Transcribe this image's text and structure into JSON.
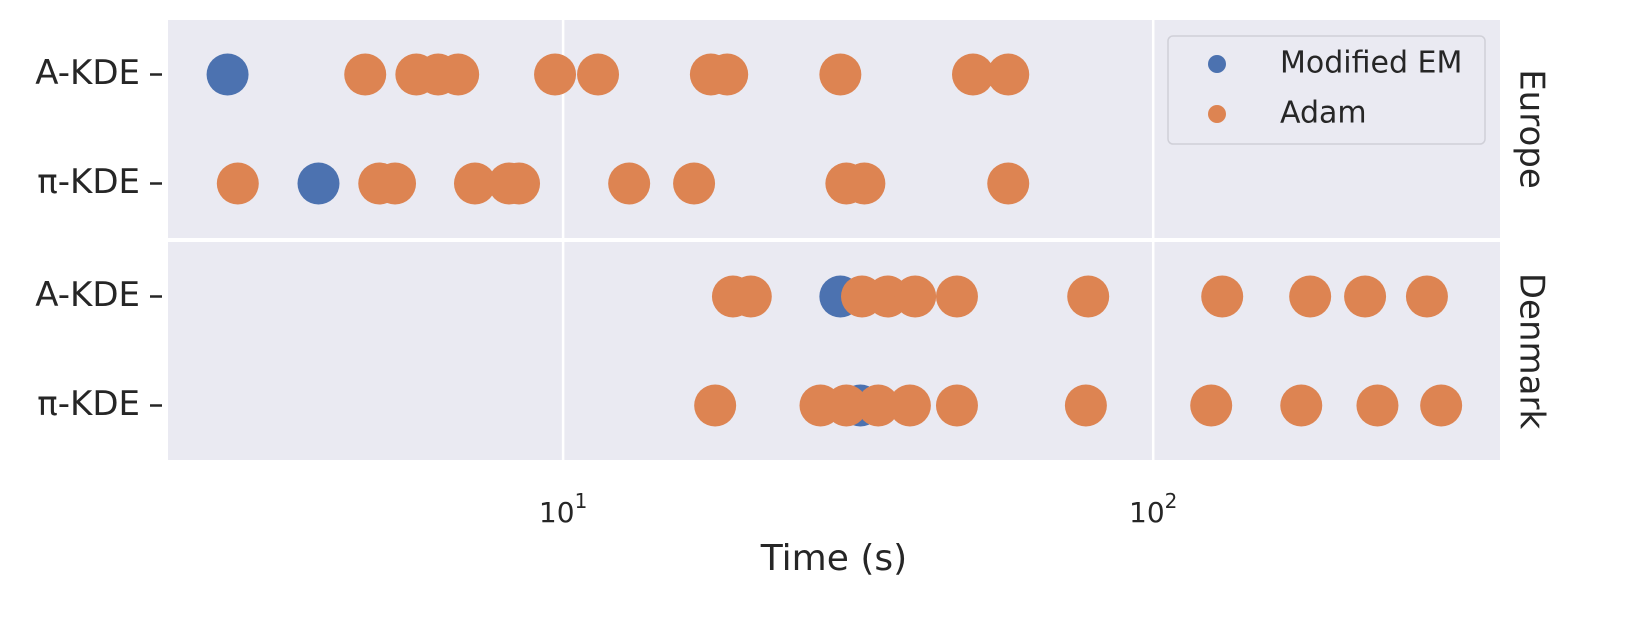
{
  "chart_data": {
    "type": "strip",
    "xlabel": "Time (s)",
    "xscale": "log",
    "xlim": [
      2.14,
      387
    ],
    "xticks": [
      {
        "value": 10,
        "label": "10",
        "exponent": "1"
      },
      {
        "value": 100,
        "label": "10",
        "exponent": "2"
      }
    ],
    "grid": true,
    "legend": "upper right",
    "series": [
      {
        "name": "Modified EM",
        "color": "#4c72b0"
      },
      {
        "name": "Adam",
        "color": "#dd8452"
      }
    ],
    "facets": [
      {
        "label": "Europe",
        "rows": [
          {
            "category": "A-KDE",
            "values": [
              [
                2.7
              ],
              [
                4.62,
                5.64,
                6.14,
                6.64,
                9.69,
                11.46,
                17.8,
                18.97,
                29.5,
                49.5,
                56.8
              ]
            ]
          },
          {
            "category": "π-KDE",
            "values": [
              [
                3.85
              ],
              [
                2.81,
                4.88,
                5.19,
                7.09,
                8.1,
                8.42,
                12.94,
                16.67,
                30.2,
                32.4,
                56.8
              ]
            ]
          }
        ]
      },
      {
        "label": "Denmark",
        "rows": [
          {
            "category": "A-KDE",
            "values": [
              [
                29.5
              ],
              [
                19.4,
                20.8,
                32.1,
                35.5,
                39.5,
                46.5,
                77.6,
                130.9,
                184.5,
                228.6,
                291
              ]
            ]
          },
          {
            "category": "π-KDE",
            "values": [
              [
                31.9
              ],
              [
                18.1,
                27.3,
                30.2,
                34.2,
                38.7,
                46.5,
                76.9,
                125.4,
                178.2,
                239.9,
                307.6
              ]
            ]
          }
        ]
      }
    ]
  }
}
